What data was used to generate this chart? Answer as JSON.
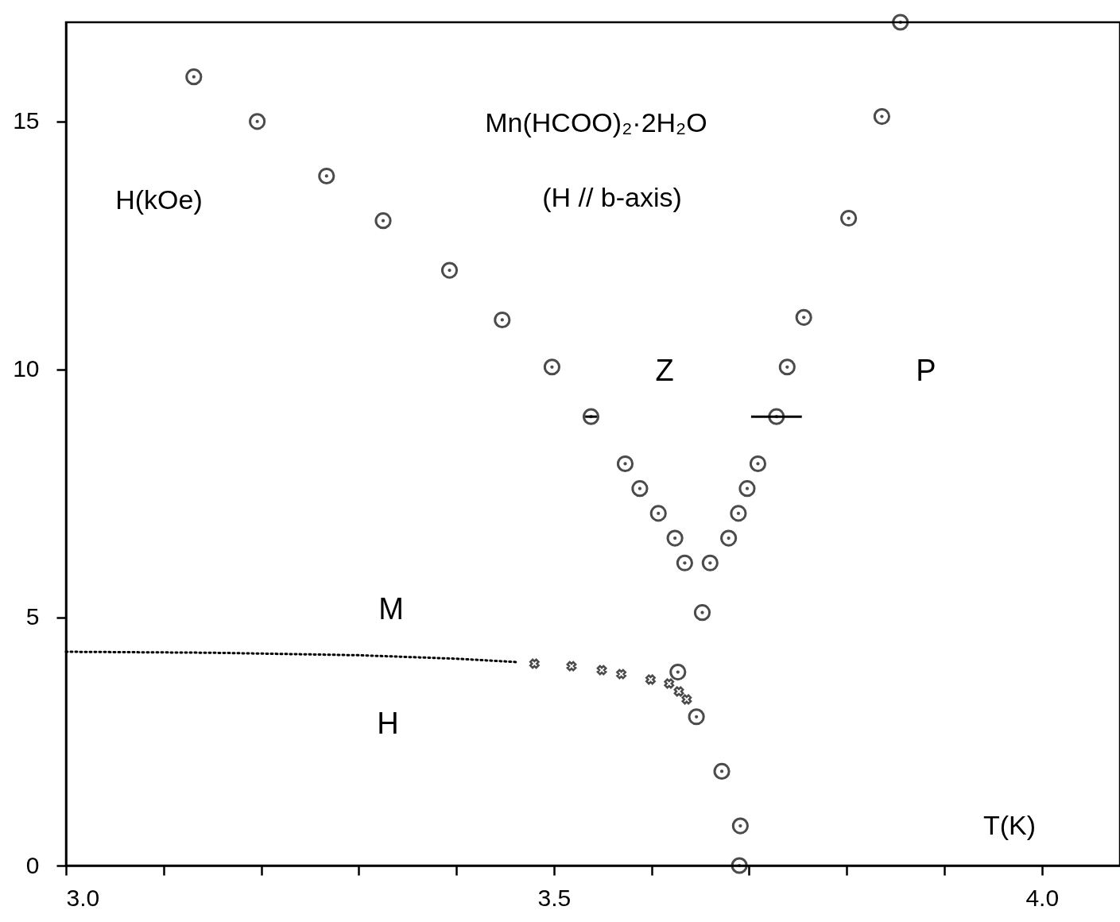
{
  "chart_data": {
    "type": "scatter",
    "title": "Mn(HCOO)₂·2H₂O",
    "subtitle": "(H // b-axis)",
    "xlabel": "T(K)",
    "ylabel": "H(kOe)",
    "xlim": [
      3.0,
      4.08
    ],
    "ylim": [
      0,
      17
    ],
    "xticks": [
      {
        "value": 3.0,
        "label": "3.0"
      },
      {
        "value": 3.1,
        "label": null
      },
      {
        "value": 3.2,
        "label": null
      },
      {
        "value": 3.3,
        "label": null
      },
      {
        "value": 3.4,
        "label": null
      },
      {
        "value": 3.5,
        "label": "3.5"
      },
      {
        "value": 3.6,
        "label": null
      },
      {
        "value": 3.7,
        "label": null
      },
      {
        "value": 3.8,
        "label": null
      },
      {
        "value": 3.9,
        "label": null
      },
      {
        "value": 4.0,
        "label": "4.0"
      }
    ],
    "yticks": [
      0,
      5,
      10,
      15
    ],
    "grid": false,
    "annotations": [
      "Z",
      "P",
      "M",
      "H"
    ],
    "series": [
      {
        "marker": "circle",
        "color": "#000000",
        "x": [
          3.131,
          3.196,
          3.267,
          3.325,
          3.393,
          3.447,
          3.498,
          3.538,
          3.573,
          3.588,
          3.607,
          3.624,
          3.634,
          3.66,
          3.652,
          3.627,
          3.646,
          3.672,
          3.691,
          3.69,
          3.679,
          3.689,
          3.698,
          3.709,
          3.728,
          3.739,
          3.756,
          3.802,
          3.836,
          3.855
        ],
        "values": [
          15.9,
          15.0,
          13.9,
          13.0,
          12.0,
          11.0,
          10.05,
          9.05,
          8.1,
          7.6,
          7.1,
          6.6,
          6.1,
          6.1,
          5.1,
          3.9,
          3.0,
          1.9,
          0.8,
          0.0,
          6.6,
          7.1,
          7.6,
          8.1,
          9.05,
          10.05,
          11.05,
          13.05,
          15.1,
          17.0
        ],
        "xerrors": [
          null,
          null,
          null,
          null,
          null,
          null,
          null,
          0.006,
          null,
          null,
          null,
          null,
          null,
          null,
          null,
          null,
          null,
          null,
          null,
          null,
          null,
          null,
          null,
          null,
          0.026,
          null,
          null,
          null,
          null,
          null
        ]
      },
      {
        "marker": "cross",
        "color": "#000000",
        "x": [
          3.48,
          3.518,
          3.549,
          3.569,
          3.599,
          3.618,
          3.628,
          3.636
        ],
        "values": [
          4.07,
          4.02,
          3.94,
          3.86,
          3.75,
          3.67,
          3.51,
          3.35
        ]
      },
      {
        "type": "line",
        "marker": "none",
        "line_style": "dotted",
        "color": "#000000",
        "x": [
          3.0,
          3.15,
          3.3,
          3.4,
          3.464
        ],
        "values": [
          4.31,
          4.29,
          4.24,
          4.17,
          4.1
        ]
      }
    ]
  }
}
